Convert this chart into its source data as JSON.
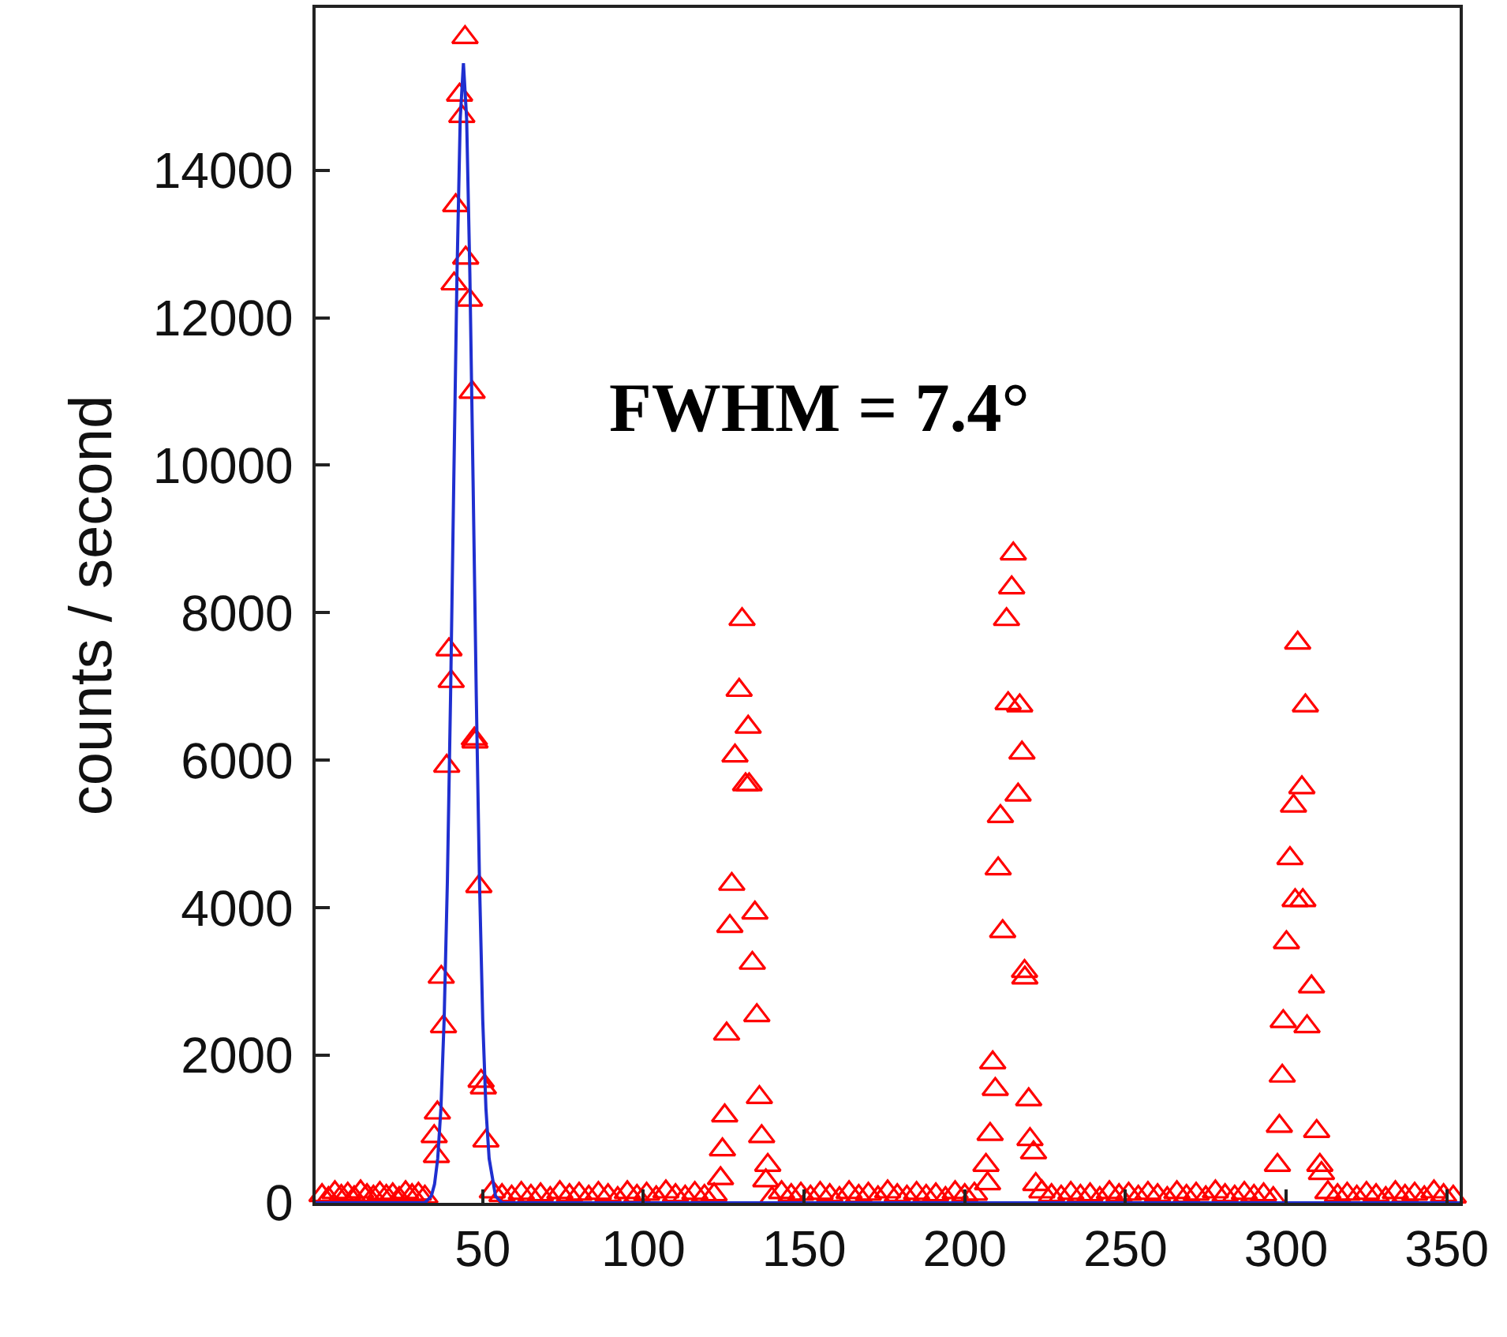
{
  "chart_data": {
    "type": "scatter",
    "ylabel": "counts / second",
    "annotations": [
      "FWHM = 7.4°"
    ],
    "xlim": [
      -2,
      354
    ],
    "xticks": [
      50,
      100,
      150,
      200,
      250,
      300,
      350
    ],
    "ylim": [
      0,
      16200
    ],
    "yticks": [
      0,
      2000,
      4000,
      6000,
      8000,
      10000,
      12000,
      14000
    ],
    "series": [
      {
        "color": "#ff0000",
        "marker": "triangle",
        "x": [
          0,
          2,
          4,
          6,
          8,
          10,
          12,
          14,
          16,
          18,
          20,
          22,
          24,
          26,
          28,
          30,
          32,
          34.9,
          35.6,
          35.9,
          37.1,
          37.8,
          38.8,
          39.5,
          40.2,
          41.1,
          41.6,
          42.8,
          43.5,
          44.5,
          44.7,
          45.9,
          46.7,
          47.4,
          47.6,
          48.8,
          49.5,
          50.2,
          51,
          53,
          56,
          59,
          62,
          65,
          68,
          71,
          74,
          77,
          80,
          83,
          86,
          89,
          92,
          95,
          98,
          101,
          104,
          107,
          110,
          113,
          116,
          119,
          122,
          124,
          124.6,
          125.3,
          125.9,
          126.9,
          127.5,
          128.5,
          129.8,
          130.7,
          131.8,
          132.6,
          132.9,
          133.9,
          134.7,
          135.3,
          136.1,
          136.8,
          138.1,
          138.7,
          140,
          143,
          146,
          149,
          152,
          155,
          158,
          161,
          164,
          167,
          170,
          173,
          176,
          179,
          182,
          185,
          188,
          191,
          194,
          197,
          200,
          203,
          206.6,
          207.1,
          207.9,
          208.7,
          209.5,
          210.4,
          211.1,
          211.8,
          213,
          213.5,
          214.6,
          215.1,
          216.6,
          217.1,
          217.8,
          218.6,
          218.7,
          219.9,
          220.3,
          221.4,
          222.1,
          224,
          227,
          230,
          233,
          236,
          239,
          242,
          245,
          248,
          251,
          254,
          257,
          260,
          263,
          266,
          269,
          272,
          275,
          278,
          281,
          284,
          287,
          290,
          293,
          296,
          297.3,
          297.9,
          298.8,
          299.1,
          300.1,
          301.2,
          302.3,
          302.8,
          303.6,
          304.9,
          305.2,
          306,
          306.5,
          307.9,
          309.5,
          310.5,
          311,
          313,
          316,
          319,
          322,
          325,
          328,
          331,
          334,
          337,
          340,
          343,
          346,
          349,
          352
        ],
        "values": [
          100,
          60,
          140,
          90,
          120,
          70,
          150,
          100,
          80,
          130,
          90,
          110,
          60,
          140,
          100,
          120,
          80,
          900,
          630,
          1220,
          3060,
          2390,
          5920,
          7500,
          7070,
          12460,
          13520,
          15020,
          14730,
          15800,
          12810,
          12240,
          10990,
          6290,
          6250,
          4290,
          1650,
          1560,
          840,
          150,
          100,
          80,
          130,
          90,
          110,
          60,
          140,
          100,
          120,
          80,
          130,
          100,
          60,
          140,
          90,
          120,
          70,
          150,
          100,
          80,
          130,
          90,
          110,
          330,
          720,
          1180,
          2290,
          3750,
          4320,
          6060,
          6950,
          7910,
          5670,
          6450,
          5670,
          3250,
          3930,
          2540,
          1430,
          900,
          300,
          510,
          60,
          140,
          100,
          120,
          80,
          130,
          100,
          60,
          140,
          90,
          120,
          70,
          150,
          100,
          80,
          130,
          90,
          110,
          60,
          140,
          100,
          120,
          510,
          260,
          930,
          1900,
          1540,
          4530,
          5240,
          3680,
          7910,
          6770,
          8340,
          8800,
          5530,
          6740,
          6100,
          3140,
          3050,
          1400,
          860,
          680,
          250,
          150,
          100,
          80,
          130,
          90,
          110,
          60,
          140,
          100,
          120,
          80,
          130,
          100,
          60,
          140,
          90,
          120,
          70,
          150,
          100,
          80,
          130,
          90,
          110,
          60,
          510,
          1040,
          1720,
          2460,
          3530,
          4670,
          5380,
          4100,
          7590,
          5630,
          4100,
          6740,
          2390,
          2930,
          970,
          510,
          400,
          140,
          100,
          120,
          80,
          130,
          100,
          60,
          140,
          90,
          120,
          70,
          150,
          100,
          80
        ]
      },
      {
        "type": "line",
        "color": "#1f2fd0",
        "marker": "none",
        "line_style": "solid",
        "x": [
          -2,
          32,
          34,
          35,
          36,
          37,
          38,
          39,
          40,
          41,
          42,
          43,
          44,
          45,
          46,
          47,
          48,
          49,
          50,
          51,
          52,
          54,
          56,
          354
        ],
        "values": [
          0,
          0,
          90,
          250,
          600,
          1280,
          2490,
          4350,
          6870,
          9790,
          12600,
          14690,
          15450,
          14690,
          12600,
          9790,
          6870,
          4350,
          2490,
          1280,
          600,
          90,
          0,
          0
        ]
      }
    ]
  }
}
